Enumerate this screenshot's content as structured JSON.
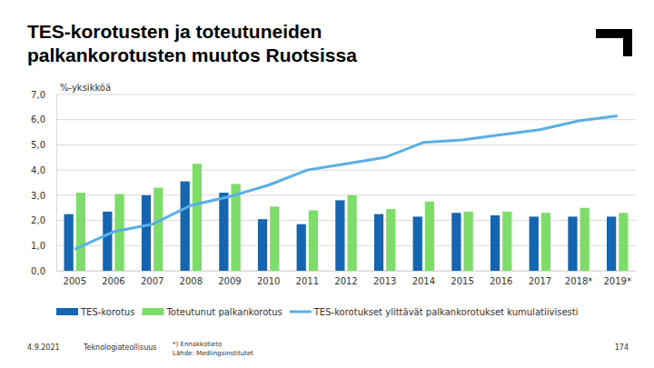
{
  "chart_data": {
    "type": "bar",
    "title": "TES-korotusten ja toteutuneiden palkankorotusten muutos Ruotsissa",
    "y_label": "%-yksikköä",
    "categories": [
      "2005",
      "2006",
      "2007",
      "2008",
      "2009",
      "2010",
      "2011",
      "2012",
      "2013",
      "2014",
      "2015",
      "2016",
      "2017",
      "2018*",
      "2019*"
    ],
    "series": [
      {
        "name": "TES-korotus",
        "color": "#1565b0",
        "values": [
          2.25,
          2.35,
          3.0,
          3.55,
          3.1,
          2.05,
          1.85,
          2.8,
          2.25,
          2.15,
          2.3,
          2.2,
          2.15,
          2.15,
          2.15
        ]
      },
      {
        "name": "Toteutunut palkankorotus",
        "color": "#7ddc6a",
        "values": [
          3.1,
          3.05,
          3.3,
          4.25,
          3.45,
          2.55,
          2.4,
          3.0,
          2.45,
          2.75,
          2.35,
          2.35,
          2.3,
          2.5,
          2.3
        ]
      },
      {
        "name": "TES-korotukset ylittävät palkankorotukset kumulatiivisesti",
        "color": "#5aaee6",
        "type": "line",
        "values": [
          0.85,
          1.55,
          1.85,
          2.6,
          2.95,
          3.4,
          4.0,
          4.25,
          4.5,
          5.1,
          5.2,
          5.4,
          5.6,
          5.95,
          6.15
        ]
      }
    ],
    "ylim": [
      0,
      7
    ],
    "yticks": [
      {
        "value": 0,
        "label": "0,0"
      },
      {
        "value": 1,
        "label": "1,0"
      },
      {
        "value": 2,
        "label": "2,0"
      },
      {
        "value": 3,
        "label": "3,0"
      },
      {
        "value": 4,
        "label": "4,0"
      },
      {
        "value": 5,
        "label": "5,0"
      },
      {
        "value": 6,
        "label": "6,0"
      },
      {
        "value": 7,
        "label": "7,0"
      }
    ],
    "grid": true,
    "legend": "bottom",
    "annotations": [
      "4.9.2021",
      "Teknologiateollisuus",
      "*) Ennakkotieto",
      "Lähde: Medlingsinstitutet",
      "174"
    ]
  }
}
